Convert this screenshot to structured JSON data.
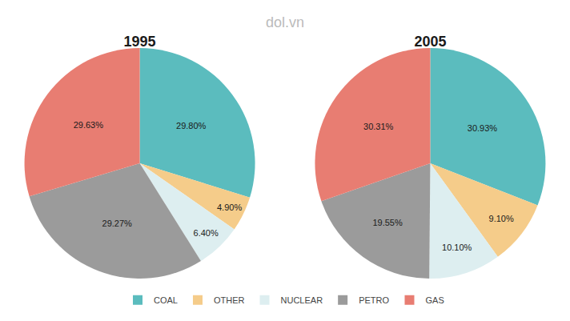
{
  "chart_data": [
    {
      "type": "pie",
      "title": "1995",
      "categories": [
        "COAL",
        "OTHER",
        "NUCLEAR",
        "PETRO",
        "GAS"
      ],
      "values": [
        29.8,
        4.9,
        6.4,
        29.27,
        29.63
      ],
      "value_labels": [
        "29.80%",
        "4.90%",
        "6.40%",
        "29.27%",
        "29.63%"
      ],
      "colors": [
        "#5bbcbe",
        "#f5cc8a",
        "#ddeef0",
        "#9b9b9b",
        "#e87d72"
      ],
      "data_labels": true,
      "legend": "bottom",
      "annotations": [
        "dol.vn"
      ]
    },
    {
      "type": "pie",
      "title": "2005",
      "categories": [
        "COAL",
        "OTHER",
        "NUCLEAR",
        "PETRO",
        "GAS"
      ],
      "values": [
        30.93,
        9.1,
        10.1,
        19.55,
        30.31
      ],
      "value_labels": [
        "30.93%",
        "9.10%",
        "10.10%",
        "19.55%",
        "30.31%"
      ],
      "colors": [
        "#5bbcbe",
        "#f5cc8a",
        "#ddeef0",
        "#9b9b9b",
        "#e87d72"
      ],
      "data_labels": true,
      "legend": "bottom"
    }
  ]
}
